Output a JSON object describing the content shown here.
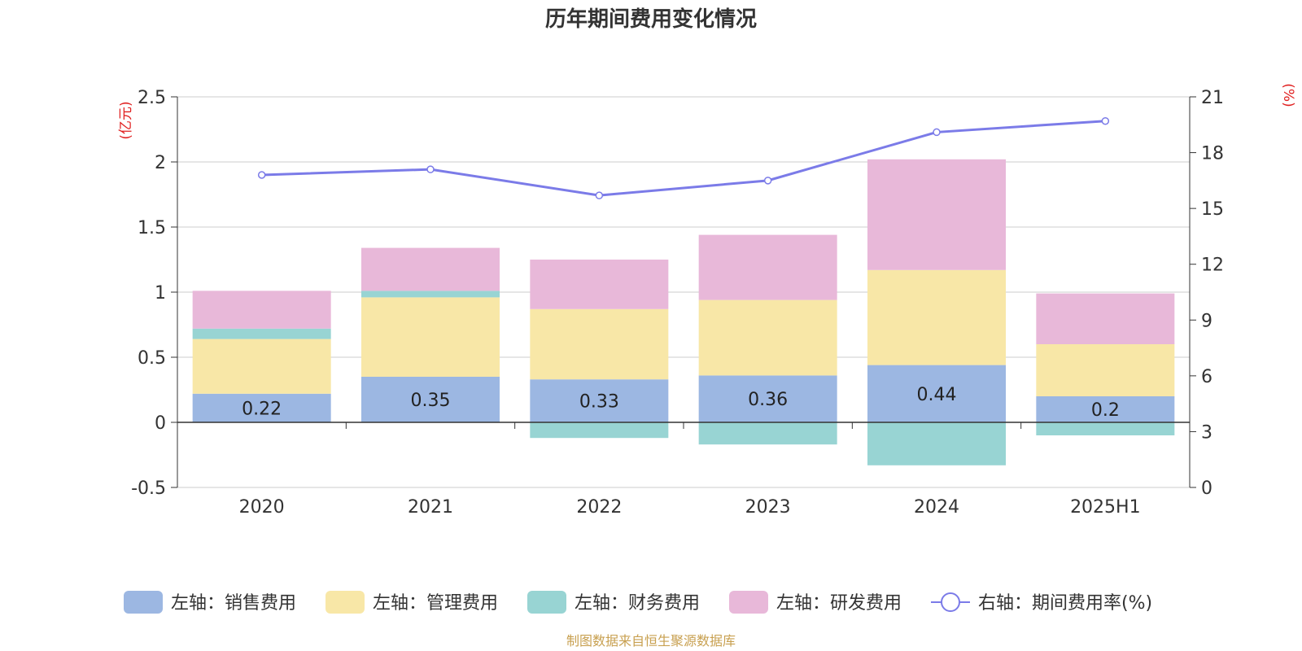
{
  "chart_data": {
    "type": "bar",
    "stacked": true,
    "title": "历年期间费用变化情况",
    "categories": [
      "2020",
      "2021",
      "2022",
      "2023",
      "2024",
      "2025H1"
    ],
    "y_left": {
      "unit": "(亿元)",
      "ylim": [
        -0.5,
        2.5
      ],
      "ticks": [
        "-0.5",
        "0",
        "0.5",
        "1",
        "1.5",
        "2",
        "2.5"
      ]
    },
    "y_right": {
      "unit": "(%)",
      "ylim": [
        0,
        21
      ],
      "ticks": [
        "0",
        "3",
        "6",
        "9",
        "12",
        "15",
        "18",
        "21"
      ]
    },
    "series": [
      {
        "name": "左轴：销售费用",
        "color": "#9cb7e2",
        "values": [
          0.22,
          0.35,
          0.33,
          0.36,
          0.44,
          0.2
        ],
        "labels": [
          "0.22",
          "0.35",
          "0.33",
          "0.36",
          "0.44",
          "0.2"
        ]
      },
      {
        "name": "左轴：管理费用",
        "color": "#f8e7a7",
        "values": [
          0.42,
          0.61,
          0.54,
          0.58,
          0.73,
          0.4
        ]
      },
      {
        "name": "左轴：财务费用",
        "color": "#98d4d3",
        "values": [
          0.08,
          0.05,
          -0.12,
          -0.17,
          -0.33,
          -0.1
        ]
      },
      {
        "name": "左轴：研发费用",
        "color": "#e8b8d9",
        "values": [
          0.29,
          0.33,
          0.38,
          0.5,
          0.85,
          0.39
        ]
      }
    ],
    "line": {
      "name": "右轴：期间费用率(%)",
      "color": "#7b7be8",
      "axis": "right",
      "values": [
        16.8,
        17.1,
        15.7,
        16.5,
        19.1,
        19.7
      ]
    },
    "grid": true,
    "legend": "bottom"
  },
  "source": {
    "text": "制图数据来自恒生聚源数据库",
    "color": "#c8a050"
  },
  "colors": {
    "axis_unit": "#e02020",
    "grid": "#cccccc",
    "axis": "#333333"
  }
}
